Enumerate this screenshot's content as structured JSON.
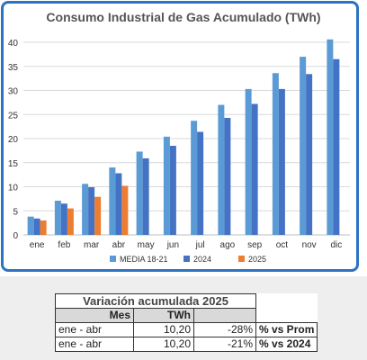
{
  "chart_data": {
    "type": "bar",
    "title": "Consumo Industrial de Gas Acumulado (TWh)",
    "xlabel": "",
    "ylabel": "",
    "categories": [
      "ene",
      "feb",
      "mar",
      "abr",
      "may",
      "jun",
      "jul",
      "ago",
      "sep",
      "oct",
      "nov",
      "dic"
    ],
    "ylim": [
      0,
      40
    ],
    "yticks": [
      "0",
      "5",
      "10",
      "15",
      "20",
      "25",
      "30",
      "35",
      "40"
    ],
    "grid": true,
    "legend_position": "bottom",
    "series": [
      {
        "name": "MEDIA 18-21",
        "color": "#5b9bd5",
        "values": [
          3.8,
          7.1,
          10.6,
          14.0,
          17.3,
          20.4,
          23.7,
          27.0,
          30.3,
          33.6,
          37.0,
          40.6
        ]
      },
      {
        "name": "2024",
        "color": "#4472c4",
        "values": [
          3.4,
          6.5,
          9.9,
          12.8,
          15.9,
          18.5,
          21.4,
          24.3,
          27.2,
          30.3,
          33.4,
          36.5
        ]
      },
      {
        "name": "2025",
        "color": "#ed7d31",
        "values": [
          3.0,
          5.5,
          7.9,
          10.2,
          null,
          null,
          null,
          null,
          null,
          null,
          null,
          null
        ]
      }
    ]
  },
  "variation_table": {
    "title": "Variación acumulada 2025",
    "col_mes": "Mes",
    "col_twh": "TWh",
    "rows": [
      {
        "mes": "ene - abr",
        "twh": "10,20",
        "pct": "-28%",
        "cmp": "% vs Prom"
      },
      {
        "mes": "ene - abr",
        "twh": "10,20",
        "pct": "-21%",
        "cmp": "% vs 2024"
      }
    ]
  }
}
